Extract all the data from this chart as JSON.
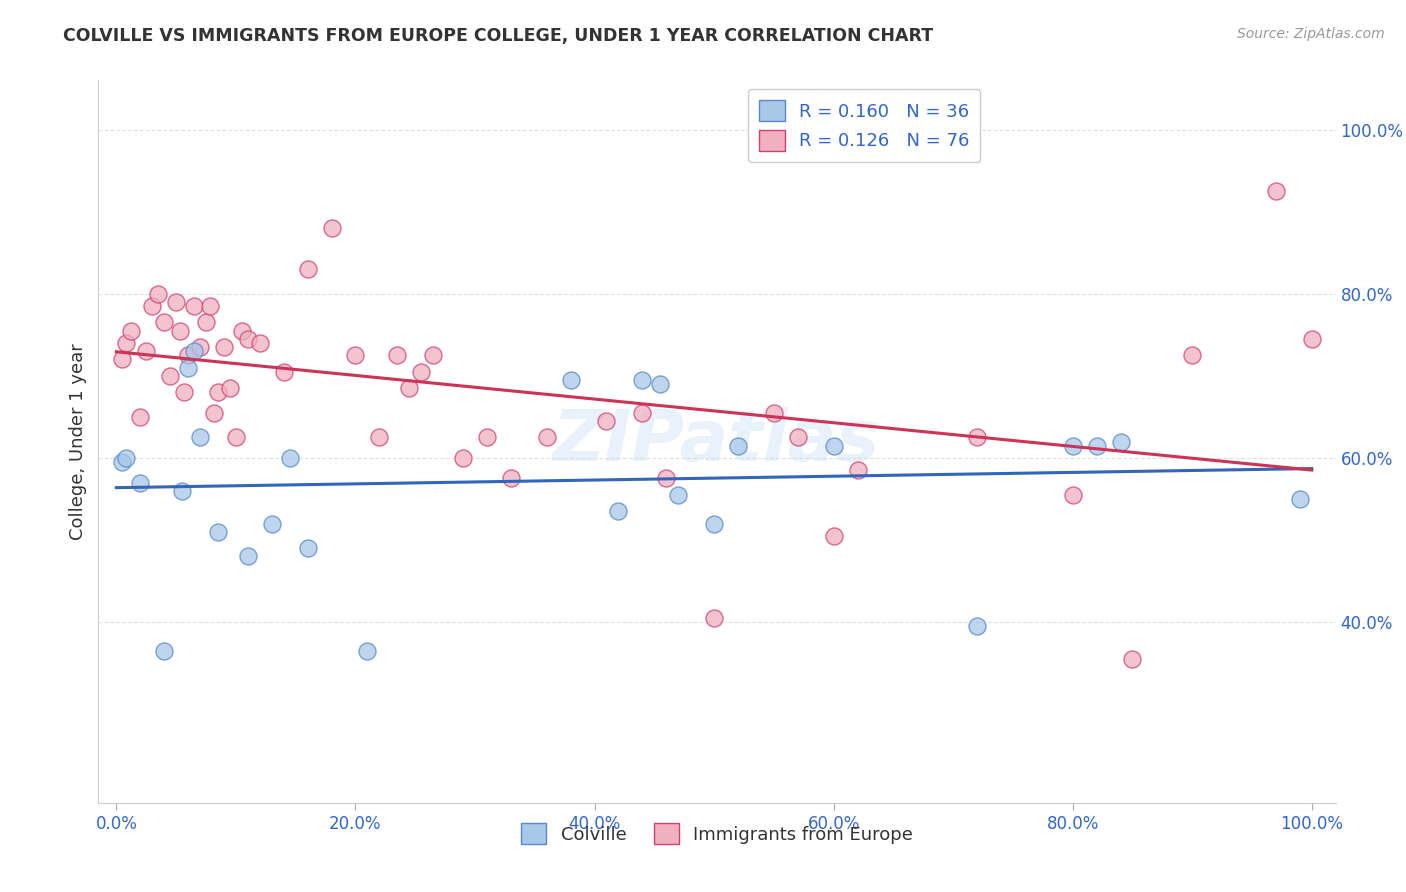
{
  "title": "COLVILLE VS IMMIGRANTS FROM EUROPE COLLEGE, UNDER 1 YEAR CORRELATION CHART",
  "source": "Source: ZipAtlas.com",
  "ylabel": "College, Under 1 year",
  "watermark": "ZIPatlas",
  "legend_r1": "R = 0.160",
  "legend_n1": "N = 36",
  "legend_r2": "R = 0.126",
  "legend_n2": "N = 76",
  "legend_label1": "Colville",
  "legend_label2": "Immigrants from Europe",
  "blue_face": "#a8c8e8",
  "blue_edge": "#5588cc",
  "pink_face": "#f0b0c0",
  "pink_edge": "#d04070",
  "blue_line": "#3366bb",
  "pink_line": "#cc3355",
  "accent_color": "#3366cc",
  "title_color": "#333333",
  "grid_color": "#dddddd",
  "xtick_vals": [
    0.0,
    0.2,
    0.4,
    0.6,
    0.8,
    1.0
  ],
  "xtick_labels": [
    "0.0%",
    "20.0%",
    "40.0%",
    "60.0%",
    "80.0%",
    "100.0%"
  ],
  "ytick_vals": [
    0.4,
    0.6,
    0.8,
    1.0
  ],
  "ytick_labels": [
    "40.0%",
    "60.0%",
    "80.0%",
    "100.0%"
  ],
  "blue_x": [
    0.005,
    0.008,
    0.02,
    0.04,
    0.055,
    0.06,
    0.065,
    0.07,
    0.085,
    0.11,
    0.13,
    0.145,
    0.16,
    0.21,
    0.38,
    0.42,
    0.44,
    0.455,
    0.47,
    0.5,
    0.52,
    0.6,
    0.72,
    0.8,
    0.82,
    0.84,
    0.99
  ],
  "blue_y": [
    0.595,
    0.6,
    0.57,
    0.365,
    0.56,
    0.71,
    0.73,
    0.625,
    0.51,
    0.48,
    0.52,
    0.6,
    0.49,
    0.365,
    0.695,
    0.535,
    0.695,
    0.69,
    0.555,
    0.52,
    0.615,
    0.615,
    0.395,
    0.615,
    0.615,
    0.62,
    0.55
  ],
  "pink_x": [
    0.005,
    0.008,
    0.012,
    0.02,
    0.025,
    0.03,
    0.035,
    0.04,
    0.045,
    0.05,
    0.053,
    0.057,
    0.06,
    0.065,
    0.07,
    0.075,
    0.078,
    0.082,
    0.085,
    0.09,
    0.095,
    0.1,
    0.105,
    0.11,
    0.12,
    0.14,
    0.16,
    0.18,
    0.2,
    0.22,
    0.235,
    0.245,
    0.255,
    0.265,
    0.29,
    0.31,
    0.33,
    0.36,
    0.41,
    0.44,
    0.46,
    0.5,
    0.55,
    0.57,
    0.6,
    0.62,
    0.72,
    0.8,
    0.85,
    0.9,
    0.97,
    1.0
  ],
  "pink_y": [
    0.72,
    0.74,
    0.755,
    0.65,
    0.73,
    0.785,
    0.8,
    0.765,
    0.7,
    0.79,
    0.755,
    0.68,
    0.725,
    0.785,
    0.735,
    0.765,
    0.785,
    0.655,
    0.68,
    0.735,
    0.685,
    0.625,
    0.755,
    0.745,
    0.74,
    0.705,
    0.83,
    0.88,
    0.725,
    0.625,
    0.725,
    0.685,
    0.705,
    0.725,
    0.6,
    0.625,
    0.575,
    0.625,
    0.645,
    0.655,
    0.575,
    0.405,
    0.655,
    0.625,
    0.505,
    0.585,
    0.625,
    0.555,
    0.355,
    0.725,
    0.925,
    0.745
  ]
}
